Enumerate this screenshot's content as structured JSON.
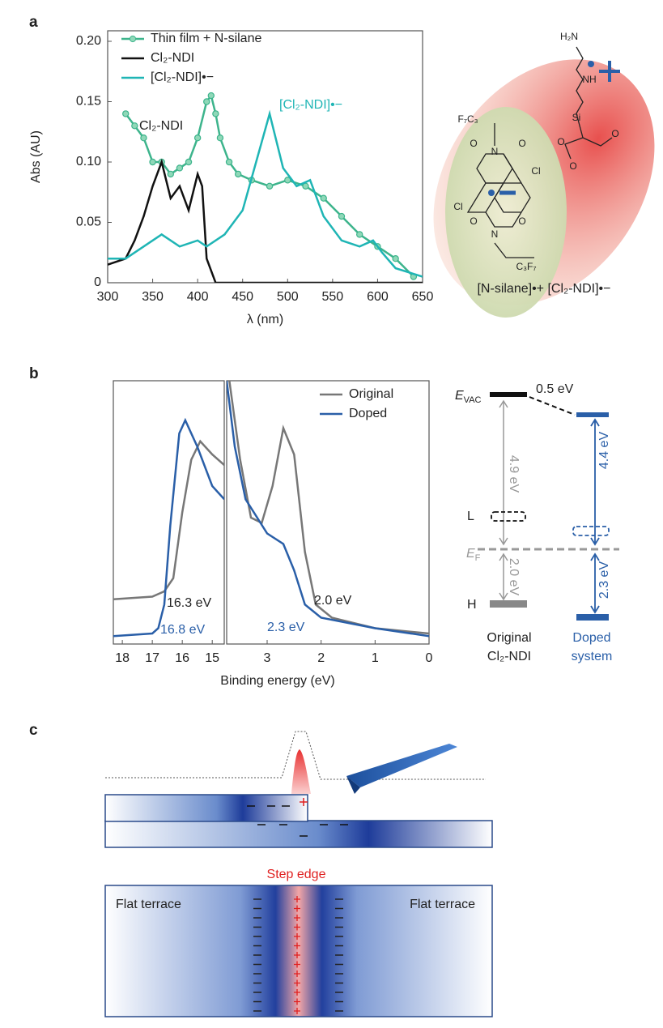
{
  "panels": [
    "a",
    "b",
    "c"
  ],
  "chart_data": [
    {
      "type": "line",
      "x_label": "λ (nm)",
      "y_label": "Abs (AU)",
      "xlim": [
        300,
        650
      ],
      "ylim": [
        0,
        0.2
      ],
      "xticks": [
        300,
        350,
        400,
        450,
        500,
        550,
        600,
        650
      ],
      "yticks": [
        0,
        0.05,
        {
          "value": 0.1,
          "label": "0.10"
        },
        0.15,
        {
          "value": 0.2,
          "label": "0.20"
        }
      ],
      "legend": "upper left",
      "series": [
        {
          "name": "Thin film + N-silane",
          "color": "#3db48c",
          "markers": true,
          "x": [
            320,
            330,
            340,
            350,
            360,
            370,
            380,
            390,
            400,
            410,
            415,
            420,
            425,
            435,
            445,
            460,
            480,
            500,
            520,
            540,
            560,
            580,
            600,
            620,
            640
          ],
          "values": [
            0.14,
            0.13,
            0.12,
            0.1,
            0.1,
            0.09,
            0.095,
            0.1,
            0.12,
            0.15,
            0.155,
            0.14,
            0.12,
            0.1,
            0.09,
            0.085,
            0.08,
            0.085,
            0.08,
            0.07,
            0.055,
            0.04,
            0.03,
            0.02,
            0.005
          ]
        },
        {
          "name": "Cl₂-NDI",
          "color": "#111111",
          "x": [
            300,
            320,
            330,
            340,
            350,
            360,
            370,
            380,
            390,
            400,
            405,
            410,
            420,
            650
          ],
          "values": [
            0.015,
            0.02,
            0.035,
            0.055,
            0.08,
            0.1,
            0.07,
            0.08,
            0.06,
            0.09,
            0.08,
            0.02,
            0,
            0
          ]
        },
        {
          "name": "[Cl₂-NDI]•−",
          "color": "#1fb5b5",
          "x": [
            300,
            320,
            340,
            360,
            380,
            400,
            410,
            430,
            450,
            465,
            480,
            495,
            510,
            525,
            540,
            560,
            580,
            595,
            605,
            620,
            650
          ],
          "values": [
            0.02,
            0.02,
            0.03,
            0.04,
            0.03,
            0.035,
            0.03,
            0.04,
            0.06,
            0.1,
            0.14,
            0.095,
            0.08,
            0.085,
            0.055,
            0.035,
            0.03,
            0.035,
            0.025,
            0.012,
            0.005
          ]
        }
      ],
      "annotations": [
        "Cl₂-NDI",
        "[Cl₂-NDI]•−"
      ]
    },
    {
      "type": "line",
      "xlim": [
        18.3,
        14.6
      ],
      "ylim": [
        0,
        1
      ],
      "xticks": [
        18,
        17,
        16,
        15
      ],
      "series": [
        {
          "color": "#777777",
          "x": [
            18.3,
            17,
            16.6,
            16.3,
            16,
            15.7,
            15.4,
            15,
            14.6
          ],
          "values": [
            0.17,
            0.18,
            0.2,
            0.25,
            0.5,
            0.7,
            0.77,
            0.72,
            0.68
          ]
        },
        {
          "color": "#2a5fa8",
          "x": [
            18.3,
            17,
            16.8,
            16.6,
            16.4,
            16.1,
            15.9,
            15.5,
            15,
            14.6
          ],
          "values": [
            0.03,
            0.04,
            0.06,
            0.15,
            0.45,
            0.8,
            0.85,
            0.75,
            0.6,
            0.55
          ]
        }
      ],
      "annotations": [
        "16.3 eV",
        "16.8 eV"
      ]
    },
    {
      "type": "line",
      "x_label": "Binding energy (eV)",
      "xlim": [
        3.75,
        0
      ],
      "ylim": [
        0,
        1
      ],
      "xticks": [
        3,
        2,
        1,
        0
      ],
      "legend": "upper right",
      "series": [
        {
          "name": "Original",
          "color": "#777777",
          "x": [
            3.7,
            3.5,
            3.3,
            3.1,
            2.9,
            2.7,
            2.5,
            2.3,
            2.1,
            1.8,
            1,
            0
          ],
          "values": [
            1,
            0.7,
            0.48,
            0.46,
            0.6,
            0.82,
            0.72,
            0.35,
            0.15,
            0.1,
            0.06,
            0.04
          ]
        },
        {
          "name": "Doped",
          "color": "#2a5fa8",
          "x": [
            3.75,
            3.6,
            3.4,
            3,
            2.7,
            2.5,
            2.3,
            2,
            1,
            0
          ],
          "values": [
            1,
            0.75,
            0.55,
            0.42,
            0.38,
            0.28,
            0.15,
            0.1,
            0.06,
            0.03
          ]
        }
      ],
      "annotations": [
        "2.0 eV",
        "2.3 eV"
      ]
    }
  ],
  "molecule": {
    "caption": "[N-silane]•+ [Cl₂-NDI]•−",
    "labels": [
      "H₂N",
      "NH",
      "Si",
      "O",
      "O",
      "O",
      "F₇C₃",
      "N",
      "O",
      "O",
      "Cl",
      "Cl",
      "O",
      "O",
      "N",
      "C₃F₇"
    ]
  },
  "energy_diagram": {
    "vacuum": {
      "main": "E",
      "sub": "VAC"
    },
    "fermi": {
      "main": "E",
      "sub": "F"
    },
    "shift": "0.5 eV",
    "original_gap_top": "4.9 eV",
    "original_gap_bottom": "2.0 eV",
    "doped_gap_top": "4.4 eV",
    "doped_gap_bottom": "2.3 eV",
    "lumo": "L",
    "homo": "H",
    "original_label": [
      "Original",
      "Cl₂-NDI"
    ],
    "doped_label": [
      "Doped",
      "system"
    ]
  },
  "schematic": {
    "step_edge": "Step edge",
    "terraces": [
      "Flat terrace",
      "Flat terrace"
    ]
  }
}
